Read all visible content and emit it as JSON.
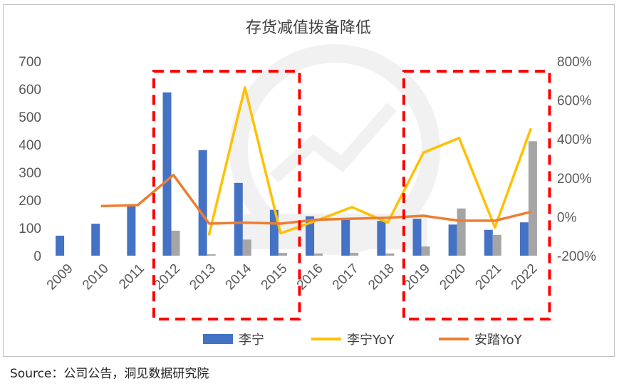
{
  "chart_data": {
    "type": "bar",
    "title": "存货减值拨备降低",
    "categories": [
      "2009",
      "2010",
      "2011",
      "2012",
      "2013",
      "2014",
      "2015",
      "2016",
      "2017",
      "2018",
      "2019",
      "2020",
      "2021",
      "2022"
    ],
    "left_axis": {
      "ylim": [
        0,
        700
      ],
      "ticks": [
        "0",
        "100",
        "200",
        "300",
        "400",
        "500",
        "600",
        "700"
      ]
    },
    "right_axis": {
      "ylim": [
        -200,
        800
      ],
      "ticks": [
        "-200%",
        "0%",
        "200%",
        "400%",
        "600%",
        "800%"
      ]
    },
    "series": [
      {
        "name": "李宁",
        "kind": "bar",
        "axis": "left",
        "color": "#4472c4",
        "values": [
          72,
          115,
          185,
          588,
          380,
          262,
          165,
          142,
          130,
          125,
          133,
          112,
          93,
          120
        ]
      },
      {
        "name": "",
        "kind": "bar",
        "axis": "left",
        "color": "#a5a5a5",
        "values": [
          null,
          null,
          null,
          90,
          5,
          58,
          10,
          8,
          10,
          8,
          33,
          170,
          75,
          412
        ]
      },
      {
        "name": "李宁YoY",
        "kind": "line",
        "axis": "right",
        "color": "#ffc000",
        "values": [
          null,
          null,
          null,
          null,
          -90,
          665,
          -85,
          -20,
          50,
          -30,
          330,
          405,
          -55,
          450
        ]
      },
      {
        "name": "安踏YoY",
        "kind": "line",
        "axis": "right",
        "color": "#ed7d31",
        "values": [
          null,
          55,
          60,
          215,
          -35,
          -30,
          -35,
          -15,
          -10,
          -5,
          5,
          -20,
          -20,
          25
        ]
      }
    ],
    "legend_position": "bottom",
    "highlight_boxes": [
      [
        "2012",
        "2015"
      ],
      [
        "2019",
        "2022"
      ]
    ],
    "highlight_color": "#ff0000"
  },
  "source_text": "Source：公司公告，洞见数据研究院"
}
